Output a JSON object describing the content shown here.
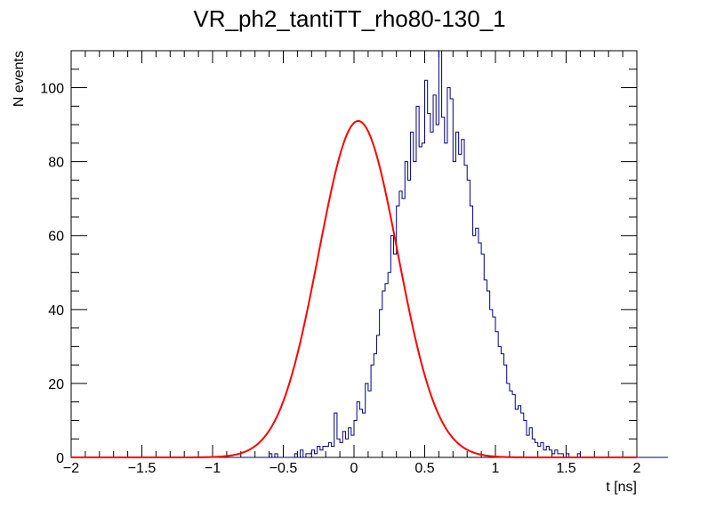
{
  "chart_data": {
    "type": "histogram",
    "title": "VR_ph2_tantiTT_rho80-130_1",
    "xlabel": "t [ns]",
    "ylabel": "N events",
    "xlim": [
      -2,
      2
    ],
    "ylim": [
      0,
      110
    ],
    "x_ticks": [
      -2,
      -1.5,
      -1,
      -0.5,
      0,
      0.5,
      1,
      1.5,
      2
    ],
    "x_tick_labels": [
      "−2",
      "−1.5",
      "−1",
      "−0.5",
      "0",
      "0.5",
      "1",
      "1.5",
      "2"
    ],
    "y_ticks": [
      0,
      20,
      40,
      60,
      80,
      100
    ],
    "y_tick_labels": [
      "0",
      "20",
      "40",
      "60",
      "80",
      "100"
    ],
    "histogram": {
      "name": "data",
      "color": "#000080",
      "bin_low": -2,
      "bin_width": 0.02,
      "counts": [
        0,
        0,
        0,
        0,
        0,
        0,
        0,
        0,
        0,
        0,
        0,
        0,
        0,
        0,
        0,
        0,
        0,
        0,
        0,
        0,
        0,
        0,
        0,
        0,
        0,
        0,
        0,
        0,
        0,
        0,
        0,
        0,
        0,
        0,
        0,
        0,
        0,
        0,
        0,
        0,
        0,
        0,
        0,
        0,
        0,
        0,
        0,
        0,
        0,
        0,
        0,
        0,
        0,
        0,
        0,
        0,
        0,
        0,
        0,
        0,
        0,
        0,
        0,
        0,
        0,
        0,
        0,
        0,
        0,
        0,
        1,
        0,
        1,
        0,
        0,
        0,
        0,
        0,
        0,
        1,
        0,
        2,
        0,
        1,
        1,
        2,
        1,
        3,
        2,
        3,
        3,
        4,
        3,
        12,
        5,
        4,
        7,
        5,
        8,
        6,
        10,
        15,
        13,
        12,
        20,
        18,
        25,
        28,
        33,
        40,
        45,
        47,
        50,
        60,
        55,
        68,
        72,
        70,
        80,
        75,
        88,
        80,
        95,
        84,
        85,
        102,
        93,
        88,
        98,
        90,
        110,
        92,
        85,
        100,
        97,
        80,
        88,
        82,
        86,
        79,
        75,
        68,
        60,
        62,
        58,
        55,
        48,
        45,
        40,
        38,
        34,
        30,
        28,
        25,
        20,
        18,
        17,
        13,
        14,
        12,
        10,
        6,
        8,
        5,
        4,
        3,
        4,
        2,
        3,
        2,
        1,
        2,
        1,
        1,
        0,
        1,
        0,
        0,
        0,
        1,
        0,
        0,
        0,
        0,
        0,
        0,
        0,
        0,
        0,
        0,
        0,
        0,
        0,
        0,
        0,
        0,
        0,
        0,
        0,
        0,
        0,
        0,
        0,
        0,
        0,
        0,
        0,
        0,
        0,
        0,
        0
      ]
    },
    "fit": {
      "name": "gaussian-fit",
      "type": "gaussian",
      "color": "#ff0000",
      "amplitude": 91,
      "mean": 0.03,
      "sigma": 0.28
    }
  }
}
